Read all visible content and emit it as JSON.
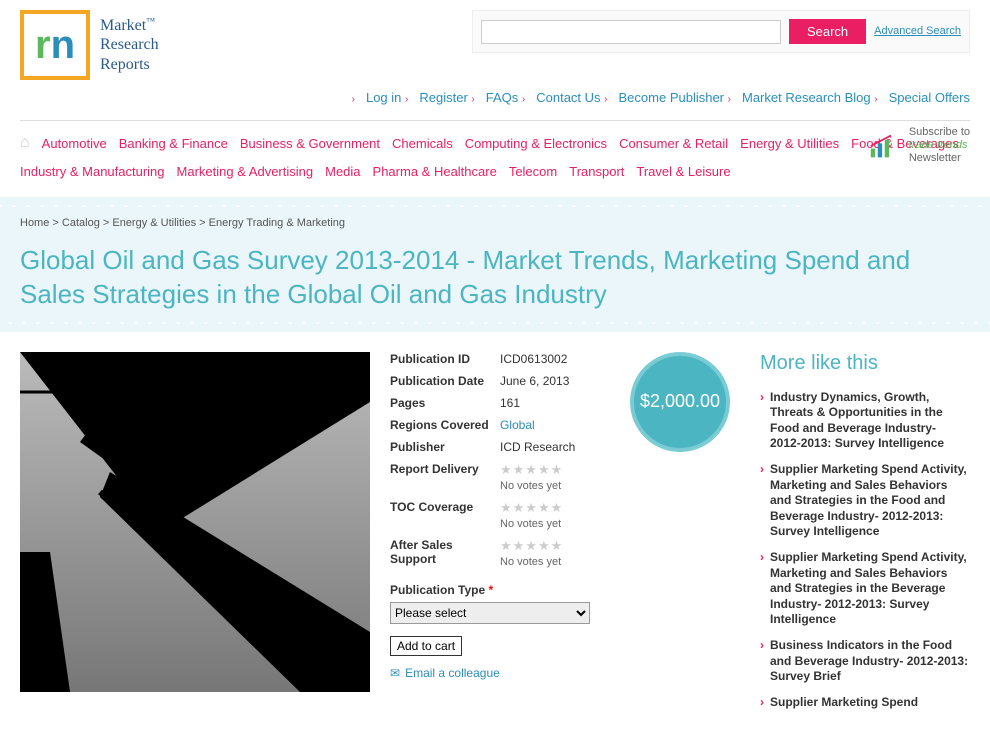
{
  "logo": {
    "line1": "Market",
    "line2": "Research",
    "line3": "Reports"
  },
  "search": {
    "placeholder": "",
    "button": "Search",
    "advanced": "Advanced Search"
  },
  "topnav": [
    "Log in",
    "Register",
    "FAQs",
    "Contact Us",
    "Become Publisher",
    "Market Research Blog",
    "Special Offers"
  ],
  "categories": [
    "Automotive",
    "Banking & Finance",
    "Business & Government",
    "Chemicals",
    "Computing & Electronics",
    "Consumer & Retail",
    "Energy & Utilities",
    "Food & Beverages",
    "Industry & Manufacturing",
    "Marketing & Advertising",
    "Media",
    "Pharma & Healthcare",
    "Telecom",
    "Transport",
    "Travel & Leisure"
  ],
  "newsletter": {
    "l1": "Subscribe to",
    "l2": "trade trends",
    "l3": "Newsletter"
  },
  "breadcrumb": [
    "Home",
    "Catalog",
    "Energy & Utilities",
    "Energy Trading & Marketing"
  ],
  "title": "Global Oil and Gas Survey 2013-2014 - Market Trends, Marketing Spend and Sales Strategies in the Global Oil and Gas Industry",
  "details": {
    "pub_id_label": "Publication ID",
    "pub_id": "ICD0613002",
    "pub_date_label": "Publication Date",
    "pub_date": "June 6, 2013",
    "pages_label": "Pages",
    "pages": "161",
    "regions_label": "Regions Covered",
    "regions": "Global",
    "publisher_label": "Publisher",
    "publisher": "ICD Research",
    "delivery_label": "Report Delivery",
    "toc_label": "TOC Coverage",
    "support_label": "After Sales Support",
    "novotes": "No votes yet",
    "pubtype_label": "Publication Type",
    "pubtype_select": "Please select",
    "addcart": "Add to cart",
    "email": "Email a colleague"
  },
  "price": "$2,000.00",
  "related_title": "More like this",
  "related": [
    "Industry Dynamics, Growth, Threats & Opportunities in the Food and Beverage Industry- 2012-2013: Survey Intelligence",
    "Supplier Marketing Spend Activity, Marketing and Sales Behaviors and Strategies in the Food and Beverage Industry- 2012-2013: Survey Intelligence",
    "Supplier Marketing Spend Activity, Marketing and Sales Behaviors and Strategies in the Beverage Industry- 2012-2013: Survey Intelligence",
    "Business Indicators in the Food and Beverage Industry- 2012-2013: Survey Brief",
    "Supplier Marketing Spend"
  ]
}
